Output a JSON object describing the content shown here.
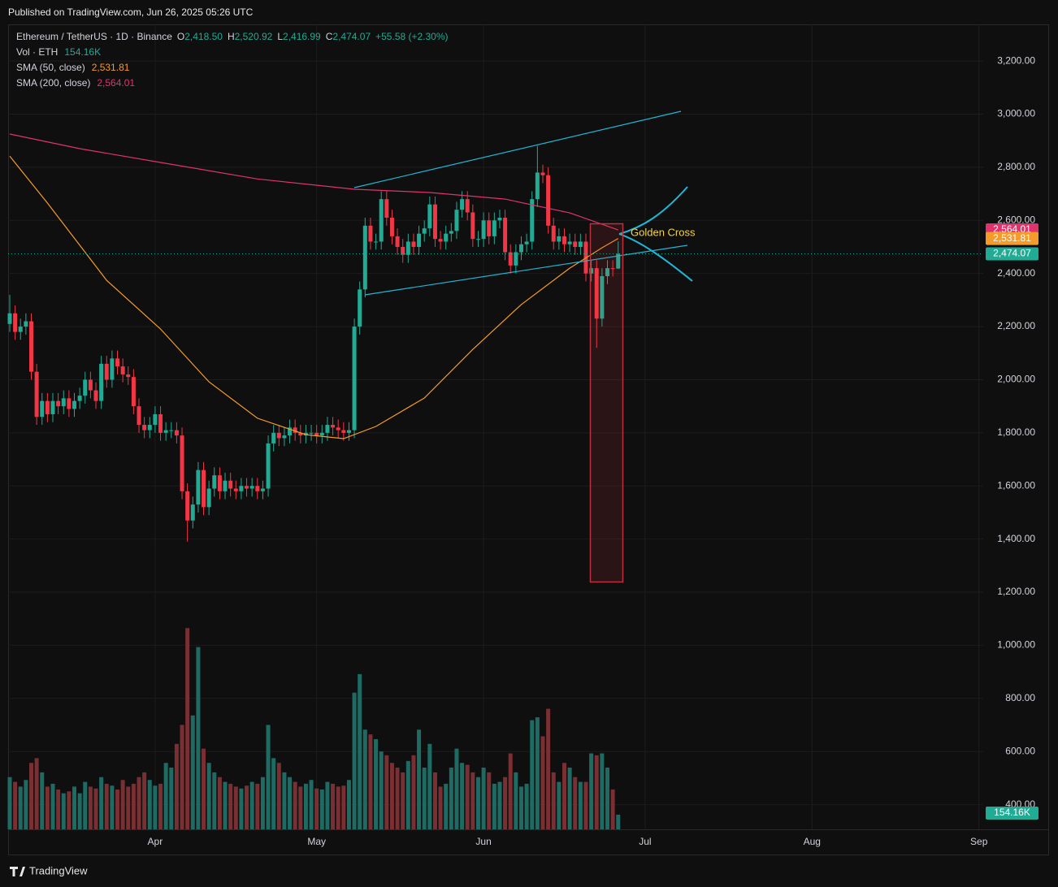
{
  "header": {
    "published": "Published on TradingView.com, Jun 26, 2025 05:26 UTC"
  },
  "footer": {
    "brand": "TradingView"
  },
  "chart_data": {
    "type": "candlestick",
    "legend": {
      "symbol": "Ethereum / TetherUS · 1D · Binance",
      "fields": [
        {
          "key": "O",
          "value": "2,418.50"
        },
        {
          "key": "H",
          "value": "2,520.92"
        },
        {
          "key": "L",
          "value": "2,416.99"
        },
        {
          "key": "C",
          "value": "2,474.07"
        }
      ],
      "change": "+55.58 (+2.30%)",
      "volume_name": "Vol · ETH",
      "volume_value": "154.16K"
    },
    "up_color": "#22ab94",
    "down_color": "#f23645",
    "volume_up_color": "#1e6b64",
    "volume_down_color": "#7a2f33",
    "open": [
      2210,
      2250,
      2180,
      2200,
      2220,
      2030,
      1860,
      1920,
      1870,
      1920,
      1900,
      1930,
      1890,
      1920,
      1940,
      2000,
      1960,
      1920,
      2060,
      2000,
      2080,
      2050,
      2020,
      2010,
      1900,
      1830,
      1810,
      1830,
      1870,
      1800,
      1810,
      1810,
      1790,
      1580,
      1470,
      1530,
      1660,
      1520,
      1590,
      1640,
      1580,
      1620,
      1590,
      1580,
      1600,
      1590,
      1600,
      1580,
      1590,
      1760,
      1800,
      1780,
      1790,
      1820,
      1800,
      1790,
      1800,
      1800,
      1790,
      1800,
      1830,
      1820,
      1810,
      1800,
      1810,
      2200,
      2340,
      2580,
      2520,
      2520,
      2680,
      2610,
      2540,
      2500,
      2470,
      2520,
      2500,
      2550,
      2570,
      2660,
      2530,
      2520,
      2550,
      2560,
      2640,
      2680,
      2630,
      2530,
      2530,
      2600,
      2540,
      2600,
      2610,
      2480,
      2430,
      2480,
      2510,
      2520,
      2680,
      2780,
      2770,
      2580,
      2520,
      2540,
      2510,
      2520,
      2500,
      2520,
      2400,
      2420,
      2230,
      2390,
      2420,
      2418.5
    ],
    "high": [
      2320,
      2280,
      2230,
      2250,
      2250,
      2060,
      1950,
      1950,
      1950,
      1950,
      1960,
      1960,
      1950,
      1970,
      2030,
      2030,
      1990,
      2090,
      2090,
      2110,
      2110,
      2080,
      2050,
      2040,
      1930,
      1860,
      1860,
      1900,
      1900,
      1840,
      1840,
      1840,
      1820,
      1610,
      1560,
      1690,
      1690,
      1620,
      1670,
      1670,
      1650,
      1650,
      1620,
      1630,
      1630,
      1630,
      1630,
      1620,
      1790,
      1830,
      1830,
      1820,
      1850,
      1850,
      1830,
      1830,
      1830,
      1830,
      1830,
      1860,
      1860,
      1850,
      1840,
      1840,
      2230,
      2370,
      2610,
      2610,
      2550,
      2710,
      2710,
      2640,
      2570,
      2530,
      2550,
      2550,
      2580,
      2600,
      2690,
      2690,
      2560,
      2580,
      2590,
      2670,
      2710,
      2710,
      2660,
      2560,
      2630,
      2630,
      2630,
      2640,
      2640,
      2510,
      2510,
      2540,
      2550,
      2710,
      2880,
      2810,
      2800,
      2610,
      2570,
      2570,
      2550,
      2550,
      2550,
      2550,
      2450,
      2450,
      2420,
      2450,
      2450,
      2520.92
    ],
    "low": [
      2180,
      2150,
      2150,
      2170,
      2000,
      1830,
      1830,
      1840,
      1840,
      1870,
      1870,
      1860,
      1860,
      1890,
      1910,
      1930,
      1890,
      1890,
      1970,
      1970,
      2020,
      1990,
      1980,
      1870,
      1800,
      1780,
      1780,
      1800,
      1770,
      1770,
      1780,
      1760,
      1550,
      1390,
      1440,
      1500,
      1490,
      1490,
      1560,
      1550,
      1550,
      1560,
      1550,
      1550,
      1560,
      1560,
      1550,
      1550,
      1560,
      1730,
      1750,
      1750,
      1760,
      1770,
      1760,
      1760,
      1770,
      1760,
      1760,
      1770,
      1790,
      1780,
      1770,
      1770,
      1780,
      2170,
      2310,
      2490,
      2490,
      2490,
      2580,
      2510,
      2470,
      2440,
      2440,
      2470,
      2470,
      2520,
      2540,
      2500,
      2490,
      2490,
      2520,
      2530,
      2610,
      2600,
      2500,
      2500,
      2500,
      2510,
      2510,
      2570,
      2450,
      2400,
      2400,
      2450,
      2480,
      2490,
      2650,
      2740,
      2550,
      2490,
      2490,
      2480,
      2480,
      2470,
      2470,
      2370,
      2370,
      2120,
      2200,
      2360,
      2388.5,
      2416.99
    ],
    "close": [
      2250,
      2180,
      2200,
      2220,
      2030,
      1860,
      1920,
      1870,
      1920,
      1900,
      1930,
      1890,
      1920,
      1940,
      2000,
      1960,
      1920,
      2060,
      2000,
      2080,
      2050,
      2020,
      2010,
      1900,
      1830,
      1810,
      1830,
      1870,
      1800,
      1810,
      1810,
      1790,
      1580,
      1470,
      1530,
      1660,
      1520,
      1590,
      1640,
      1580,
      1620,
      1590,
      1580,
      1600,
      1590,
      1600,
      1580,
      1590,
      1760,
      1800,
      1780,
      1790,
      1820,
      1800,
      1790,
      1800,
      1800,
      1790,
      1800,
      1830,
      1820,
      1810,
      1800,
      1810,
      2200,
      2340,
      2580,
      2520,
      2520,
      2680,
      2610,
      2540,
      2500,
      2470,
      2520,
      2500,
      2550,
      2570,
      2660,
      2530,
      2520,
      2550,
      2560,
      2640,
      2680,
      2630,
      2530,
      2530,
      2600,
      2540,
      2600,
      2610,
      2480,
      2430,
      2480,
      2510,
      2520,
      2680,
      2780,
      2770,
      2580,
      2520,
      2540,
      2510,
      2520,
      2500,
      2520,
      2400,
      2420,
      2230,
      2390,
      2420,
      2418.5,
      2474.07
    ],
    "volume": [
      550,
      500,
      450,
      520,
      700,
      750,
      600,
      450,
      480,
      420,
      380,
      400,
      450,
      380,
      500,
      450,
      430,
      550,
      480,
      460,
      420,
      520,
      450,
      480,
      550,
      600,
      520,
      460,
      480,
      700,
      650,
      900,
      1100,
      2120,
      1200,
      1920,
      850,
      700,
      600,
      550,
      500,
      480,
      450,
      430,
      460,
      500,
      480,
      550,
      1100,
      750,
      700,
      600,
      550,
      500,
      450,
      480,
      520,
      430,
      420,
      500,
      480,
      450,
      460,
      520,
      1440,
      1635,
      1050,
      1000,
      950,
      820,
      780,
      700,
      650,
      600,
      720,
      780,
      1050,
      650,
      900,
      600,
      450,
      480,
      650,
      850,
      700,
      680,
      600,
      550,
      650,
      600,
      480,
      500,
      550,
      800,
      600,
      450,
      480,
      1150,
      1180,
      980,
      1270,
      600,
      500,
      700,
      650,
      550,
      500,
      500,
      800,
      780,
      800,
      650,
      420,
      154.16
    ],
    "sma": [
      {
        "name": "SMA (50, close)",
        "color": "#f59b2b",
        "value_label": "2,531.81",
        "x": [
          0,
          7,
          18,
          28,
          37,
          46,
          55,
          62,
          68,
          77,
          86,
          95,
          104,
          110,
          113
        ],
        "values": [
          2842,
          2665,
          2374,
          2191,
          1992,
          1855,
          1793,
          1778,
          1824,
          1931,
          2114,
          2283,
          2420,
          2497,
          2531.81
        ]
      },
      {
        "name": "SMA (200, close)",
        "color": "#e0336b",
        "value_label": "2,564.01",
        "x": [
          0,
          13,
          28,
          46,
          64,
          78,
          92,
          104,
          113
        ],
        "values": [
          2925,
          2870,
          2818,
          2756,
          2717,
          2705,
          2680,
          2628,
          2564.01
        ]
      }
    ],
    "price_label": "2,474.07",
    "annotation": "Golden Cross",
    "xlim": [
      -0.3,
      180.8
    ],
    "xticks": [
      {
        "value": 27,
        "label": "Apr"
      },
      {
        "value": 57,
        "label": "May"
      },
      {
        "value": 88,
        "label": "Jun"
      },
      {
        "value": 118,
        "label": "Jul"
      },
      {
        "value": 149,
        "label": "Aug"
      },
      {
        "value": 180,
        "label": "Sep"
      }
    ],
    "ylim": [
      307,
      3338
    ],
    "yticks": [
      {
        "value": 400,
        "label": "400.00"
      },
      {
        "value": 600,
        "label": "600.00"
      },
      {
        "value": 800,
        "label": "800.00"
      },
      {
        "value": 1000,
        "label": "1,000.00"
      },
      {
        "value": 1200,
        "label": "1,200.00"
      },
      {
        "value": 1400,
        "label": "1,400.00"
      },
      {
        "value": 1600,
        "label": "1,600.00"
      },
      {
        "value": 1800,
        "label": "1,800.00"
      },
      {
        "value": 2000,
        "label": "2,000.00"
      },
      {
        "value": 2200,
        "label": "2,200.00"
      },
      {
        "value": 2400,
        "label": "2,400.00"
      },
      {
        "value": 2600,
        "label": "2,600.00"
      },
      {
        "value": 2800,
        "label": "2,800.00"
      },
      {
        "value": 3000,
        "label": "3,000.00"
      },
      {
        "value": 3200,
        "label": "3,200.00"
      }
    ],
    "y2lim": [
      0,
      8480
    ],
    "grid": true
  }
}
